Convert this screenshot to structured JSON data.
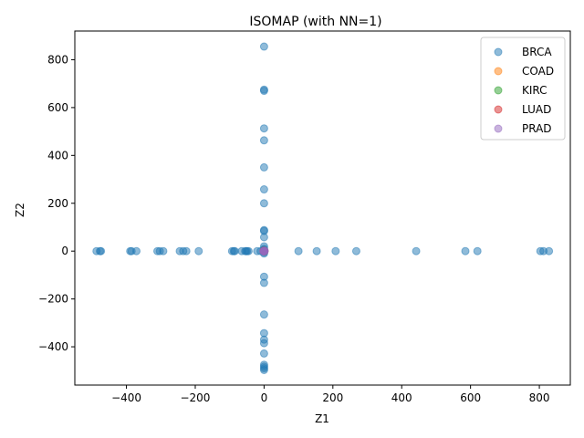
{
  "chart_data": {
    "type": "scatter",
    "title": "ISOMAP (with NN=1)",
    "xlabel": "Z1",
    "ylabel": "Z2",
    "xlim": [
      -550,
      890
    ],
    "ylim": [
      -560,
      920
    ],
    "xticks": [
      -400,
      -200,
      0,
      200,
      400,
      600,
      800
    ],
    "yticks": [
      -400,
      -200,
      0,
      200,
      400,
      600,
      800
    ],
    "xtick_labels": [
      "−400",
      "−200",
      "0",
      "200",
      "400",
      "600",
      "800"
    ],
    "ytick_labels": [
      "−400",
      "−200",
      "0",
      "200",
      "400",
      "600",
      "800"
    ],
    "grid": false,
    "legend_position": "top-right",
    "series": [
      {
        "name": "BRCA",
        "color": "#1f77b4",
        "points": [
          [
            0,
            855
          ],
          [
            0,
            675
          ],
          [
            0,
            670
          ],
          [
            0,
            513
          ],
          [
            0,
            463
          ],
          [
            0,
            350
          ],
          [
            0,
            258
          ],
          [
            0,
            200
          ],
          [
            0,
            88
          ],
          [
            0,
            84
          ],
          [
            0,
            58
          ],
          [
            0,
            20
          ],
          [
            0,
            10
          ],
          [
            0,
            5
          ],
          [
            0,
            -5
          ],
          [
            0,
            -10
          ],
          [
            0,
            -107
          ],
          [
            0,
            -133
          ],
          [
            0,
            -265
          ],
          [
            0,
            -343
          ],
          [
            0,
            -370
          ],
          [
            0,
            -385
          ],
          [
            0,
            -428
          ],
          [
            0,
            -475
          ],
          [
            0,
            -483
          ],
          [
            0,
            -490
          ],
          [
            0,
            -497
          ],
          [
            -487,
            0
          ],
          [
            -477,
            0
          ],
          [
            -474,
            0
          ],
          [
            -389,
            0
          ],
          [
            -385,
            0
          ],
          [
            -371,
            0
          ],
          [
            -310,
            0
          ],
          [
            -303,
            0
          ],
          [
            -293,
            0
          ],
          [
            -245,
            0
          ],
          [
            -235,
            0
          ],
          [
            -226,
            0
          ],
          [
            -190,
            0
          ],
          [
            -93,
            0
          ],
          [
            -88,
            0
          ],
          [
            -85,
            0
          ],
          [
            -65,
            0
          ],
          [
            -55,
            0
          ],
          [
            -52,
            0
          ],
          [
            -49,
            0
          ],
          [
            -45,
            0
          ],
          [
            -20,
            0
          ],
          [
            -10,
            0
          ],
          [
            100,
            0
          ],
          [
            153,
            0
          ],
          [
            208,
            0
          ],
          [
            268,
            0
          ],
          [
            442,
            0
          ],
          [
            585,
            0
          ],
          [
            620,
            0
          ],
          [
            803,
            0
          ],
          [
            812,
            0
          ],
          [
            828,
            0
          ]
        ]
      },
      {
        "name": "COAD",
        "color": "#ff7f0e",
        "points": [
          [
            0,
            0
          ],
          [
            1,
            1
          ],
          [
            -1,
            0
          ]
        ]
      },
      {
        "name": "KIRC",
        "color": "#2ca02c",
        "points": [
          [
            0,
            0
          ],
          [
            1,
            -1
          ],
          [
            0,
            1
          ]
        ]
      },
      {
        "name": "LUAD",
        "color": "#d62728",
        "points": [
          [
            0,
            0
          ],
          [
            -1,
            1
          ],
          [
            1,
            0
          ]
        ]
      },
      {
        "name": "PRAD",
        "color": "#9467bd",
        "points": [
          [
            0,
            0
          ],
          [
            1,
            0
          ],
          [
            0,
            -1
          ],
          [
            -1,
            -1
          ],
          [
            2,
            1
          ],
          [
            -2,
            0
          ]
        ]
      }
    ]
  }
}
